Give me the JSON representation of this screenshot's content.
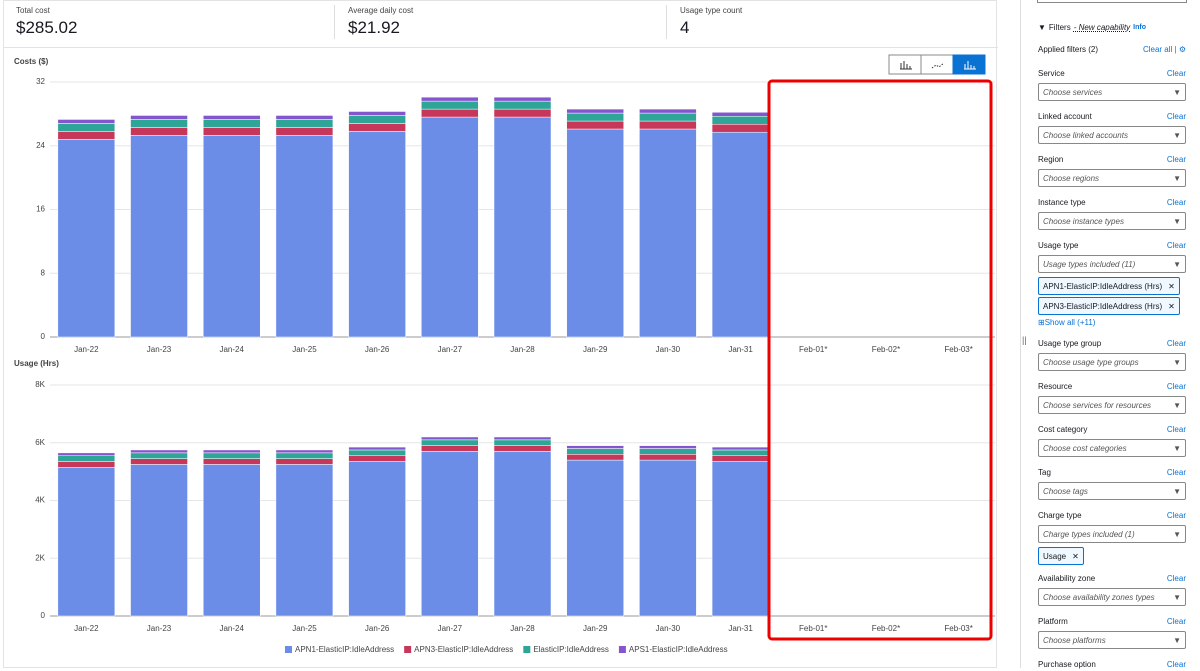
{
  "summary": [
    {
      "label": "Total cost",
      "value": "$285.02"
    },
    {
      "label": "Average daily cost",
      "value": "$21.92"
    },
    {
      "label": "Usage type count",
      "value": "4"
    }
  ],
  "chart_data": [
    {
      "type": "bar",
      "stacked": true,
      "title": "Costs ($)",
      "categories": [
        "Jan-22",
        "Jan-23",
        "Jan-24",
        "Jan-25",
        "Jan-26",
        "Jan-27",
        "Jan-28",
        "Jan-29",
        "Jan-30",
        "Jan-31",
        "Feb-01*",
        "Feb-02*",
        "Feb-03*"
      ],
      "series": [
        {
          "name": "APN1-ElasticIP:IdleAddress",
          "color": "#6b8de8",
          "values": [
            24.8,
            25.3,
            25.3,
            25.3,
            25.8,
            27.6,
            27.6,
            26.1,
            26.1,
            25.7,
            null,
            null,
            null
          ]
        },
        {
          "name": "APN3-ElasticIP:IdleAddress",
          "color": "#c7375a",
          "values": [
            1.0,
            1.0,
            1.0,
            1.0,
            1.0,
            1.0,
            1.0,
            1.0,
            1.0,
            1.0,
            null,
            null,
            null
          ]
        },
        {
          "name": "ElasticIP:IdleAddress",
          "color": "#2ea597",
          "values": [
            1.0,
            1.0,
            1.0,
            1.0,
            1.0,
            1.0,
            1.0,
            1.0,
            1.0,
            1.0,
            null,
            null,
            null
          ]
        },
        {
          "name": "APS1-ElasticIP:IdleAddress",
          "color": "#8456ce",
          "values": [
            0.5,
            0.5,
            0.5,
            0.5,
            0.5,
            0.5,
            0.5,
            0.5,
            0.5,
            0.5,
            null,
            null,
            null
          ]
        }
      ],
      "ylim": [
        0,
        32
      ],
      "yticks": [
        0,
        8,
        16,
        24,
        32
      ],
      "grid": true
    },
    {
      "type": "bar",
      "stacked": true,
      "title": "Usage (Hrs)",
      "categories": [
        "Jan-22",
        "Jan-23",
        "Jan-24",
        "Jan-25",
        "Jan-26",
        "Jan-27",
        "Jan-28",
        "Jan-29",
        "Jan-30",
        "Jan-31",
        "Feb-01*",
        "Feb-02*",
        "Feb-03*"
      ],
      "series": [
        {
          "name": "APN1-ElasticIP:IdleAddress",
          "color": "#6b8de8",
          "values": [
            5150,
            5250,
            5250,
            5250,
            5350,
            5700,
            5700,
            5400,
            5400,
            5350,
            null,
            null,
            null
          ]
        },
        {
          "name": "APN3-ElasticIP:IdleAddress",
          "color": "#c7375a",
          "values": [
            200,
            200,
            200,
            200,
            200,
            200,
            200,
            200,
            200,
            200,
            null,
            null,
            null
          ]
        },
        {
          "name": "ElasticIP:IdleAddress",
          "color": "#2ea597",
          "values": [
            200,
            200,
            200,
            200,
            200,
            200,
            200,
            200,
            200,
            200,
            null,
            null,
            null
          ]
        },
        {
          "name": "APS1-ElasticIP:IdleAddress",
          "color": "#8456ce",
          "values": [
            100,
            100,
            100,
            100,
            100,
            100,
            100,
            100,
            100,
            100,
            null,
            null,
            null
          ]
        }
      ],
      "ylim": [
        0,
        8000
      ],
      "yticks": [
        0,
        {
          "value": 2000,
          "label": "2K"
        },
        {
          "value": 4000,
          "label": "4K"
        },
        {
          "value": 6000,
          "label": "6K"
        },
        {
          "value": 8000,
          "label": "8K"
        }
      ],
      "grid": true,
      "legend": "bottom"
    }
  ],
  "filters": {
    "title": "Filters",
    "capability": "- New capability",
    "info": "Info",
    "applied": "Applied filters (2)",
    "clear_all": "Clear all",
    "clear": "Clear",
    "groups": [
      {
        "label": "Service",
        "placeholder": "Choose services"
      },
      {
        "label": "Linked account",
        "placeholder": "Choose linked accounts"
      },
      {
        "label": "Region",
        "placeholder": "Choose regions"
      },
      {
        "label": "Instance type",
        "placeholder": "Choose instance types"
      },
      {
        "label": "Usage type",
        "placeholder": "Usage types included (11)",
        "chips": [
          "APN1-ElasticIP:IdleAddress (Hrs)",
          "APN3-ElasticIP:IdleAddress (Hrs)"
        ],
        "show_all": "Show all (+11)"
      },
      {
        "label": "Usage type group",
        "placeholder": "Choose usage type groups"
      },
      {
        "label": "Resource",
        "placeholder": "Choose services for resources"
      },
      {
        "label": "Cost category",
        "placeholder": "Choose cost categories"
      },
      {
        "label": "Tag",
        "placeholder": "Choose tags"
      },
      {
        "label": "Charge type",
        "placeholder": "Charge types included (1)",
        "chips": [
          "Usage"
        ]
      },
      {
        "label": "Availability zone",
        "placeholder": "Choose availability zones types"
      },
      {
        "label": "Platform",
        "placeholder": "Choose platforms"
      },
      {
        "label": "Purchase option"
      }
    ]
  }
}
